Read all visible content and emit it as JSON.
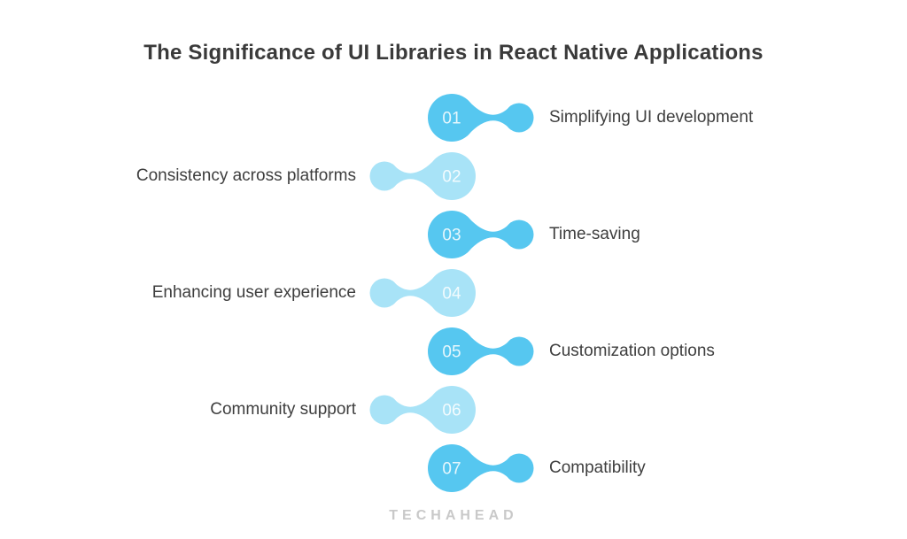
{
  "title": "The Significance of UI Libraries in React Native Applications",
  "colors": {
    "primary": "#56C7F0",
    "secondary": "#A8E3F7",
    "label_text": "#3e3e3e",
    "title_text": "#3a3a3a",
    "brand_text": "#c9c9c9"
  },
  "items": [
    {
      "number": "01",
      "label": "Simplifying UI development",
      "side": "right",
      "tone": "primary"
    },
    {
      "number": "02",
      "label": "Consistency across platforms",
      "side": "left",
      "tone": "secondary"
    },
    {
      "number": "03",
      "label": "Time-saving",
      "side": "right",
      "tone": "primary"
    },
    {
      "number": "04",
      "label": "Enhancing user experience",
      "side": "left",
      "tone": "secondary"
    },
    {
      "number": "05",
      "label": "Customization options",
      "side": "right",
      "tone": "primary"
    },
    {
      "number": "06",
      "label": "Community support",
      "side": "left",
      "tone": "secondary"
    },
    {
      "number": "07",
      "label": "Compatibility",
      "side": "right",
      "tone": "primary"
    }
  ],
  "footer": {
    "brand": "TECHAHEAD"
  }
}
